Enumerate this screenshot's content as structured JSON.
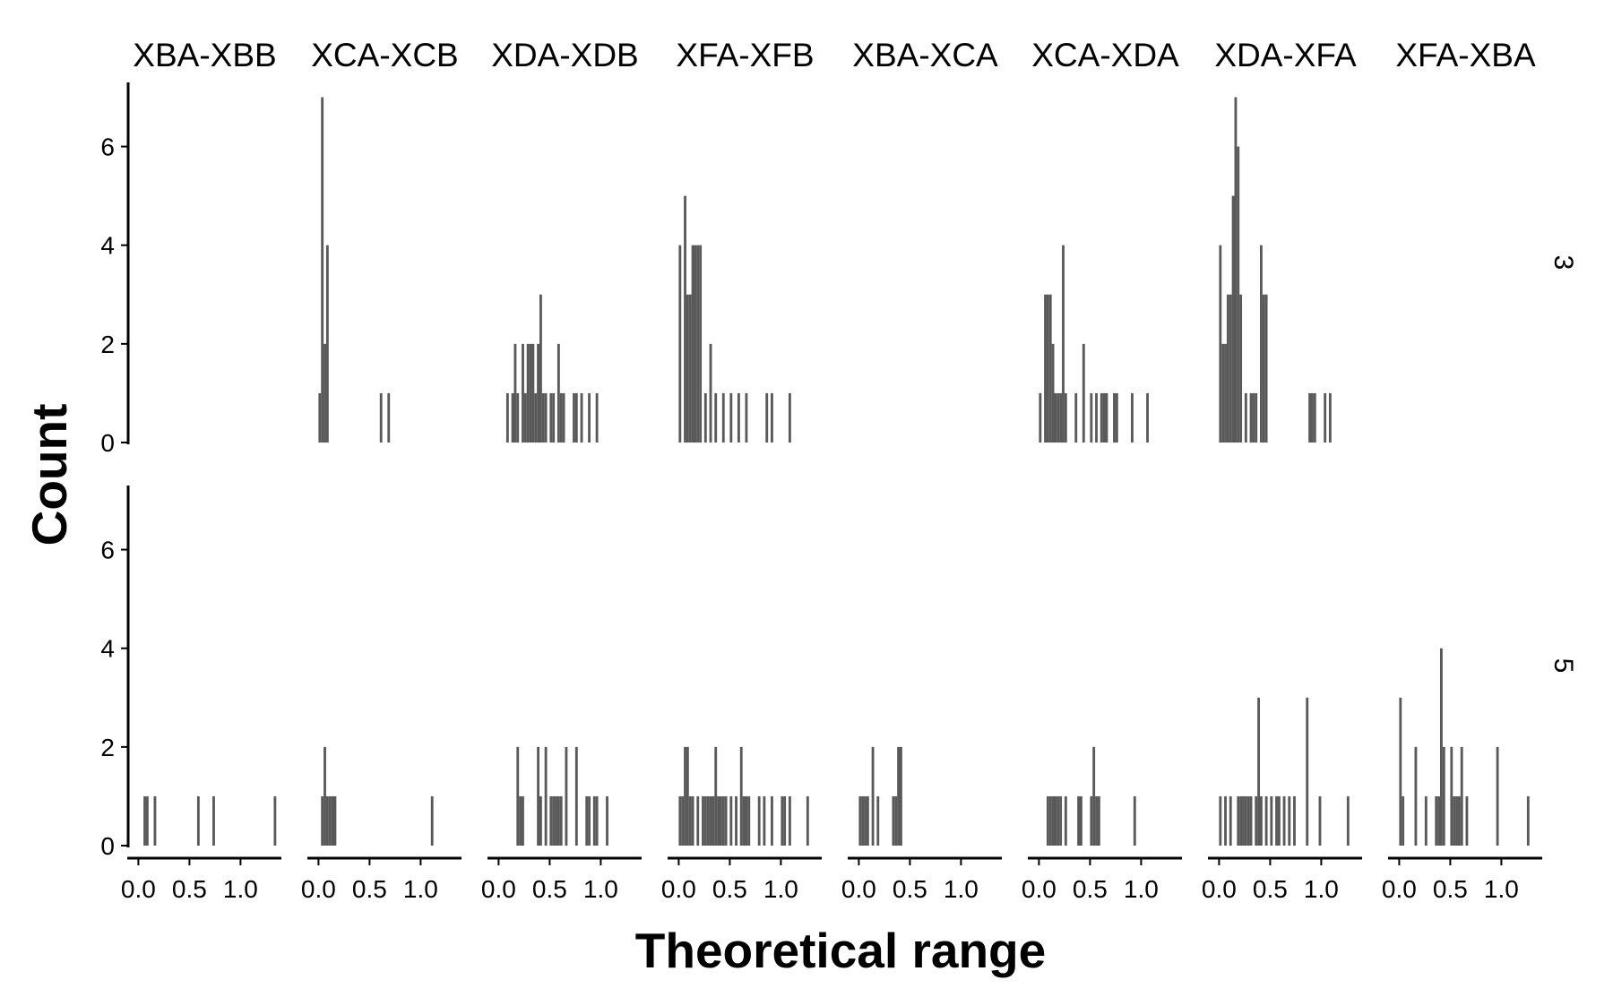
{
  "chart_data": {
    "type": "bar",
    "subtype": "faceted-histogram",
    "xlabel": "Theoretical range",
    "ylabel": "Count",
    "column_facets": [
      "XBA-XBB",
      "XCA-XCB",
      "XDA-XDB",
      "XFA-XFB",
      "XBA-XCA",
      "XCA-XDA",
      "XDA-XFA",
      "XFA-XBA"
    ],
    "row_facets": [
      "3",
      "5"
    ],
    "x_ticks": [
      "0.0",
      "0.5",
      "1.0"
    ],
    "y_ticks": [
      "0",
      "2",
      "4",
      "6"
    ],
    "xlim": [
      -0.1,
      1.4
    ],
    "ylim": [
      0,
      7.3
    ],
    "bin_width": 0.025,
    "bar_color": "#595959",
    "grid": false,
    "panels": [
      {
        "column": "XBA-XBB",
        "row": "3",
        "bins": []
      },
      {
        "column": "XCA-XCB",
        "row": "3",
        "bins": [
          [
            0.0,
            1
          ],
          [
            0.025,
            7
          ],
          [
            0.05,
            2
          ],
          [
            0.075,
            4
          ],
          [
            0.6,
            1
          ],
          [
            0.675,
            1
          ]
        ]
      },
      {
        "column": "XDA-XDB",
        "row": "3",
        "bins": [
          [
            0.075,
            1
          ],
          [
            0.125,
            1
          ],
          [
            0.15,
            2
          ],
          [
            0.175,
            1
          ],
          [
            0.225,
            2
          ],
          [
            0.25,
            1
          ],
          [
            0.275,
            2
          ],
          [
            0.3,
            2
          ],
          [
            0.325,
            2
          ],
          [
            0.35,
            1
          ],
          [
            0.375,
            2
          ],
          [
            0.4,
            3
          ],
          [
            0.425,
            1
          ],
          [
            0.45,
            1
          ],
          [
            0.5,
            1
          ],
          [
            0.525,
            1
          ],
          [
            0.575,
            2
          ],
          [
            0.6,
            1
          ],
          [
            0.625,
            1
          ],
          [
            0.725,
            1
          ],
          [
            0.75,
            1
          ],
          [
            0.8,
            1
          ],
          [
            0.875,
            1
          ],
          [
            0.95,
            1
          ]
        ]
      },
      {
        "column": "XFA-XFB",
        "row": "3",
        "bins": [
          [
            0.0,
            4
          ],
          [
            0.05,
            5
          ],
          [
            0.075,
            3
          ],
          [
            0.1,
            3
          ],
          [
            0.125,
            4
          ],
          [
            0.15,
            4
          ],
          [
            0.175,
            4
          ],
          [
            0.2,
            4
          ],
          [
            0.25,
            1
          ],
          [
            0.3,
            2
          ],
          [
            0.35,
            1
          ],
          [
            0.425,
            1
          ],
          [
            0.5,
            1
          ],
          [
            0.575,
            1
          ],
          [
            0.65,
            1
          ],
          [
            0.85,
            1
          ],
          [
            0.9,
            1
          ],
          [
            1.075,
            1
          ]
        ]
      },
      {
        "column": "XBA-XCA",
        "row": "3",
        "bins": []
      },
      {
        "column": "XCA-XDA",
        "row": "3",
        "bins": [
          [
            0.0,
            1
          ],
          [
            0.05,
            3
          ],
          [
            0.075,
            3
          ],
          [
            0.1,
            3
          ],
          [
            0.125,
            2
          ],
          [
            0.15,
            1
          ],
          [
            0.175,
            1
          ],
          [
            0.2,
            1
          ],
          [
            0.225,
            4
          ],
          [
            0.25,
            1
          ],
          [
            0.35,
            1
          ],
          [
            0.425,
            2
          ],
          [
            0.5,
            1
          ],
          [
            0.55,
            1
          ],
          [
            0.6,
            1
          ],
          [
            0.625,
            1
          ],
          [
            0.65,
            1
          ],
          [
            0.725,
            1
          ],
          [
            0.75,
            1
          ],
          [
            0.9,
            1
          ],
          [
            1.05,
            1
          ]
        ]
      },
      {
        "column": "XDA-XFA",
        "row": "3",
        "bins": [
          [
            0.0,
            4
          ],
          [
            0.025,
            2
          ],
          [
            0.05,
            2
          ],
          [
            0.075,
            3
          ],
          [
            0.1,
            3
          ],
          [
            0.125,
            5
          ],
          [
            0.15,
            7
          ],
          [
            0.175,
            6
          ],
          [
            0.2,
            3
          ],
          [
            0.25,
            1
          ],
          [
            0.3,
            1
          ],
          [
            0.325,
            1
          ],
          [
            0.35,
            1
          ],
          [
            0.4,
            4
          ],
          [
            0.425,
            3
          ],
          [
            0.45,
            3
          ],
          [
            0.875,
            1
          ],
          [
            0.9,
            1
          ],
          [
            0.925,
            1
          ],
          [
            1.025,
            1
          ],
          [
            1.075,
            1
          ]
        ]
      },
      {
        "column": "XFA-XBA",
        "row": "3",
        "bins": []
      },
      {
        "column": "XBA-XBB",
        "row": "5",
        "bins": [
          [
            0.05,
            1
          ],
          [
            0.075,
            1
          ],
          [
            0.15,
            1
          ],
          [
            0.575,
            1
          ],
          [
            0.725,
            1
          ],
          [
            1.325,
            1
          ]
        ]
      },
      {
        "column": "XCA-XCB",
        "row": "5",
        "bins": [
          [
            0.025,
            1
          ],
          [
            0.05,
            2
          ],
          [
            0.075,
            1
          ],
          [
            0.1,
            1
          ],
          [
            0.125,
            1
          ],
          [
            0.15,
            1
          ],
          [
            1.1,
            1
          ]
        ]
      },
      {
        "column": "XDA-XDB",
        "row": "5",
        "bins": [
          [
            0.175,
            2
          ],
          [
            0.2,
            1
          ],
          [
            0.225,
            1
          ],
          [
            0.375,
            2
          ],
          [
            0.4,
            1
          ],
          [
            0.45,
            2
          ],
          [
            0.5,
            1
          ],
          [
            0.525,
            1
          ],
          [
            0.55,
            1
          ],
          [
            0.575,
            1
          ],
          [
            0.6,
            1
          ],
          [
            0.65,
            2
          ],
          [
            0.75,
            2
          ],
          [
            0.85,
            1
          ],
          [
            0.875,
            1
          ],
          [
            0.925,
            1
          ],
          [
            0.95,
            1
          ],
          [
            1.05,
            1
          ]
        ]
      },
      {
        "column": "XFA-XFB",
        "row": "5",
        "bins": [
          [
            0.0,
            1
          ],
          [
            0.025,
            1
          ],
          [
            0.05,
            2
          ],
          [
            0.075,
            2
          ],
          [
            0.1,
            1
          ],
          [
            0.125,
            1
          ],
          [
            0.175,
            1
          ],
          [
            0.225,
            1
          ],
          [
            0.25,
            1
          ],
          [
            0.275,
            1
          ],
          [
            0.3,
            1
          ],
          [
            0.325,
            1
          ],
          [
            0.35,
            2
          ],
          [
            0.375,
            1
          ],
          [
            0.4,
            1
          ],
          [
            0.425,
            1
          ],
          [
            0.45,
            1
          ],
          [
            0.5,
            1
          ],
          [
            0.55,
            1
          ],
          [
            0.6,
            2
          ],
          [
            0.625,
            1
          ],
          [
            0.65,
            1
          ],
          [
            0.675,
            1
          ],
          [
            0.775,
            1
          ],
          [
            0.825,
            1
          ],
          [
            0.9,
            1
          ],
          [
            1.0,
            1
          ],
          [
            1.025,
            1
          ],
          [
            1.075,
            1
          ],
          [
            1.25,
            1
          ]
        ]
      },
      {
        "column": "XBA-XCA",
        "row": "5",
        "bins": [
          [
            0.0,
            1
          ],
          [
            0.025,
            1
          ],
          [
            0.05,
            1
          ],
          [
            0.075,
            1
          ],
          [
            0.125,
            2
          ],
          [
            0.175,
            1
          ],
          [
            0.325,
            1
          ],
          [
            0.35,
            1
          ],
          [
            0.375,
            2
          ],
          [
            0.4,
            2
          ]
        ]
      },
      {
        "column": "XCA-XDA",
        "row": "5",
        "bins": [
          [
            0.075,
            1
          ],
          [
            0.1,
            1
          ],
          [
            0.125,
            1
          ],
          [
            0.15,
            1
          ],
          [
            0.175,
            1
          ],
          [
            0.2,
            1
          ],
          [
            0.25,
            1
          ],
          [
            0.375,
            1
          ],
          [
            0.4,
            1
          ],
          [
            0.5,
            1
          ],
          [
            0.525,
            2
          ],
          [
            0.55,
            1
          ],
          [
            0.575,
            1
          ],
          [
            0.925,
            1
          ]
        ]
      },
      {
        "column": "XDA-XFA",
        "row": "5",
        "bins": [
          [
            0.0,
            1
          ],
          [
            0.05,
            1
          ],
          [
            0.1,
            1
          ],
          [
            0.175,
            1
          ],
          [
            0.2,
            1
          ],
          [
            0.225,
            1
          ],
          [
            0.25,
            1
          ],
          [
            0.275,
            1
          ],
          [
            0.3,
            1
          ],
          [
            0.35,
            1
          ],
          [
            0.375,
            3
          ],
          [
            0.4,
            1
          ],
          [
            0.45,
            1
          ],
          [
            0.5,
            1
          ],
          [
            0.55,
            1
          ],
          [
            0.575,
            1
          ],
          [
            0.625,
            1
          ],
          [
            0.675,
            1
          ],
          [
            0.725,
            1
          ],
          [
            0.85,
            3
          ],
          [
            0.975,
            1
          ],
          [
            1.25,
            1
          ]
        ]
      },
      {
        "column": "XFA-XBA",
        "row": "5",
        "bins": [
          [
            0.0,
            3
          ],
          [
            0.025,
            1
          ],
          [
            0.15,
            2
          ],
          [
            0.25,
            1
          ],
          [
            0.35,
            1
          ],
          [
            0.375,
            1
          ],
          [
            0.4,
            4
          ],
          [
            0.425,
            2
          ],
          [
            0.5,
            2
          ],
          [
            0.525,
            1
          ],
          [
            0.55,
            1
          ],
          [
            0.575,
            1
          ],
          [
            0.6,
            2
          ],
          [
            0.65,
            1
          ],
          [
            0.95,
            2
          ],
          [
            1.25,
            1
          ]
        ]
      }
    ]
  }
}
